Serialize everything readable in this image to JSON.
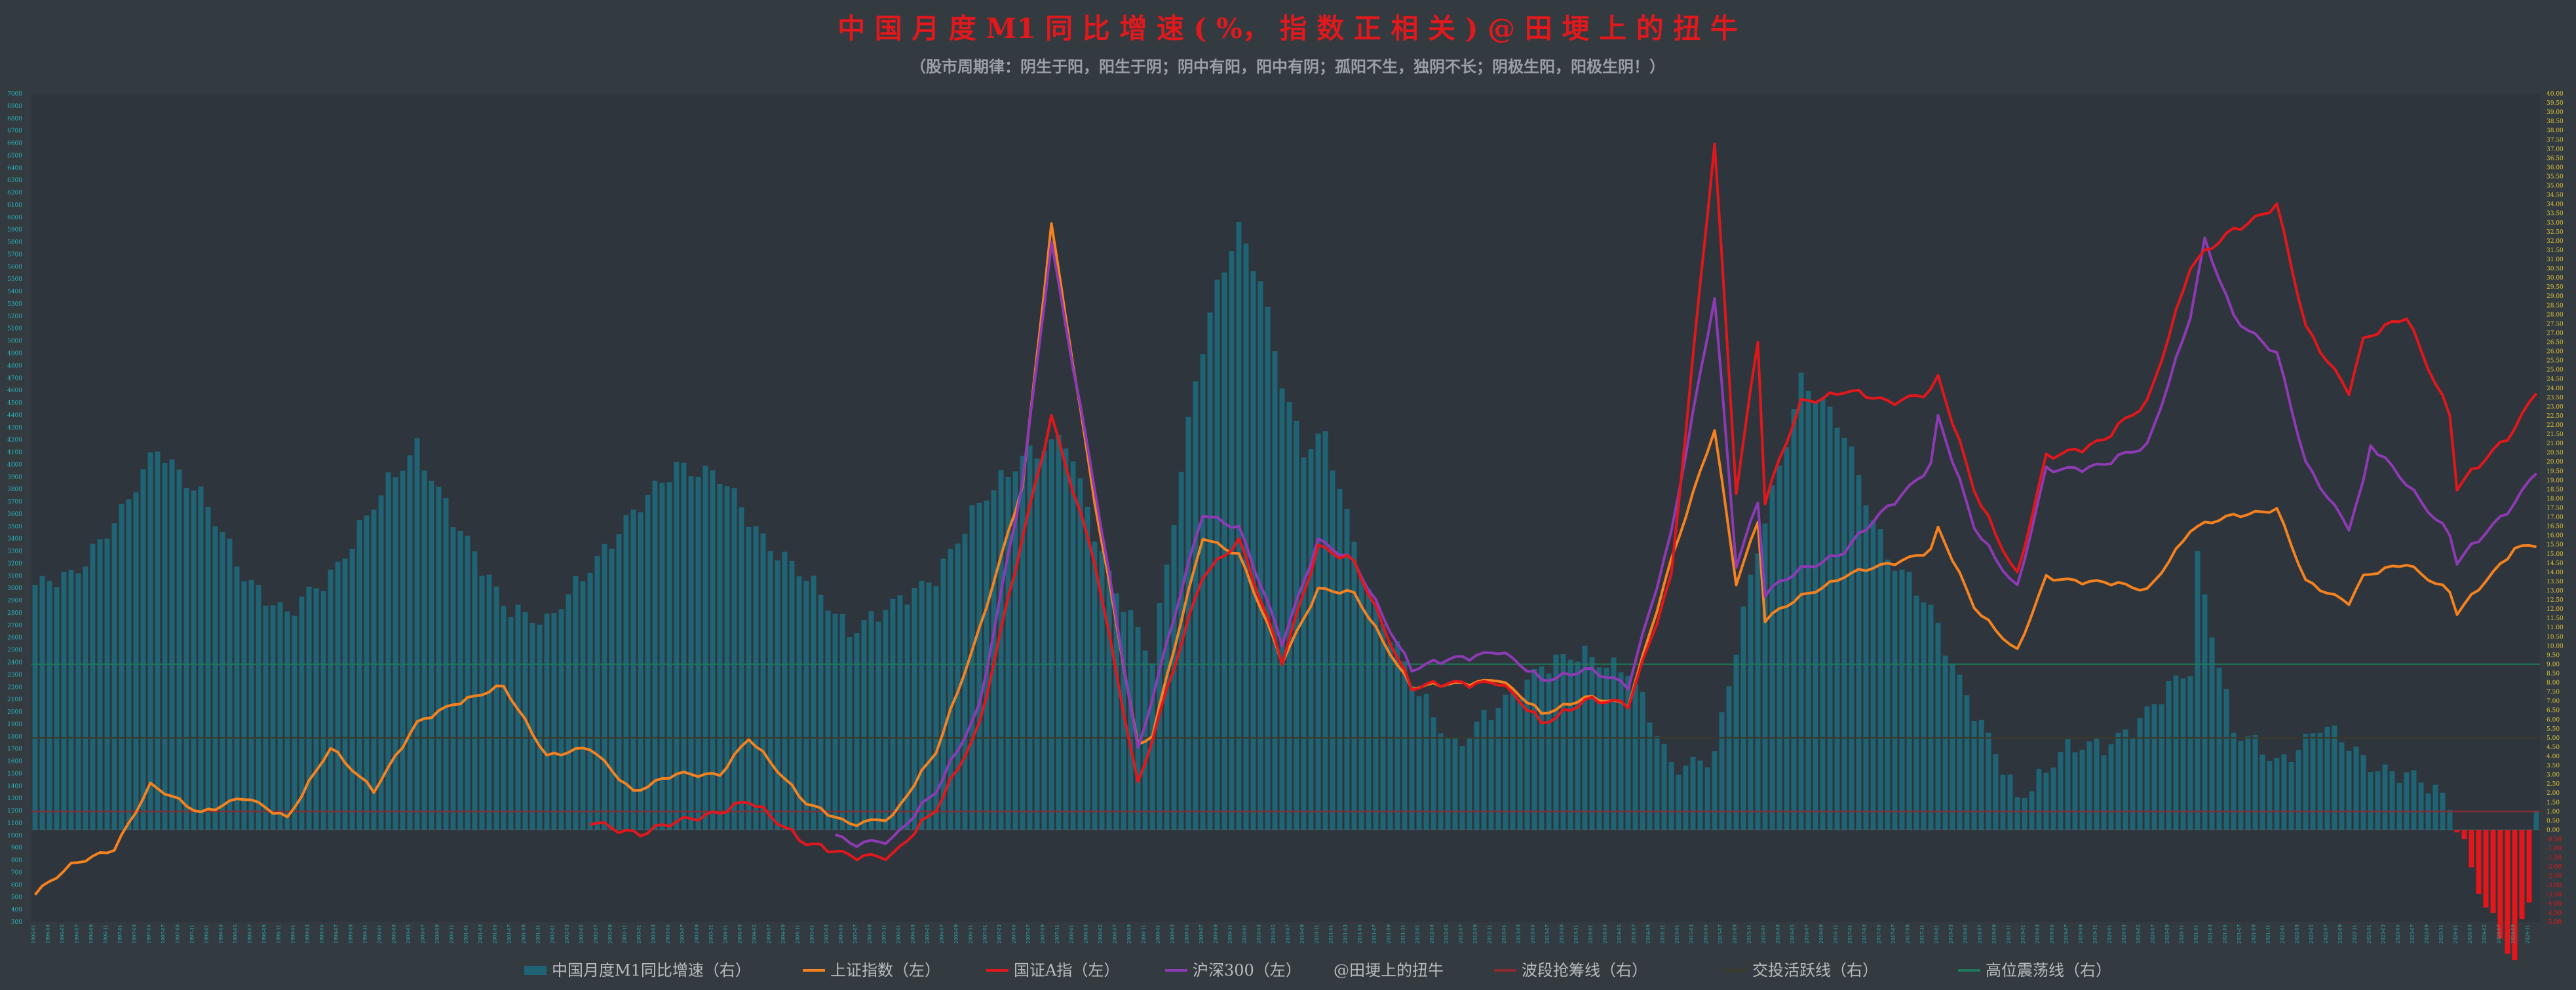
{
  "chart_data": {
    "type": "bar",
    "title": "中 国 月 度 M1 同 比 增 速 ( %， 指 数 正 相 关 ) @ 田 埂 上 的 扭 牛",
    "subtitle": "（股市周期律：阴生于阳，阳生于阴；阴中有阳，阳中有阴；孤阳不生，独阴不长；阴极生阳，阳极生阴！）",
    "colors": {
      "background": "#333a40",
      "title": "#e0191d",
      "subtitle": "#9aa0a6",
      "m1_bar": "#1f6475",
      "sh_index": "#f5821f",
      "a_index": "#e3171b",
      "hs300": "#8e3ab5",
      "negative_m1": "#e3171b",
      "left_axis_text": "#2cb5b5",
      "right_axis_text": "#d8c23a",
      "right_axis_negative_text": "#e3171b",
      "wave_line": "#8a2b31",
      "active_line": "#3a3a2a",
      "high_line": "#1c7a5a"
    },
    "x_axis": {
      "start": "1996-01",
      "end": "2024-12",
      "tick_labels_shown": "monthly dates 1996-01 to 2024-12, rotated (illegible at this resolution)"
    },
    "left_axis": {
      "label": "",
      "min": 300,
      "max": 7000,
      "tick_step": 100
    },
    "right_axis": {
      "label": "",
      "min": -5.0,
      "max": 40.0,
      "tick_step": 0.5
    },
    "reference_lines": [
      {
        "name": "波段抢筹线（右）",
        "value": 1.0,
        "axis": "right",
        "color_key": "wave_line"
      },
      {
        "name": "交投活跃线（右）",
        "value": 5.0,
        "axis": "right",
        "color_key": "active_line"
      },
      {
        "name": "高位震荡线（右）",
        "value": 9.0,
        "axis": "right",
        "color_key": "high_line"
      }
    ],
    "series_keypoints": {
      "m1_yoy_right": [
        [
          "1996-01",
          13.0
        ],
        [
          "1996-06",
          14.0
        ],
        [
          "1997-01",
          17.0
        ],
        [
          "1997-06",
          21.0
        ],
        [
          "1997-12",
          18.0
        ],
        [
          "1998-06",
          14.0
        ],
        [
          "1998-12",
          11.5
        ],
        [
          "1999-06",
          14.0
        ],
        [
          "1999-12",
          17.5
        ],
        [
          "2000-06",
          21.0
        ],
        [
          "2000-12",
          16.0
        ],
        [
          "2001-06",
          12.5
        ],
        [
          "2001-12",
          11.0
        ],
        [
          "2002-06",
          14.5
        ],
        [
          "2002-12",
          17.0
        ],
        [
          "2003-06",
          20.0
        ],
        [
          "2003-12",
          19.0
        ],
        [
          "2004-06",
          16.0
        ],
        [
          "2004-12",
          13.5
        ],
        [
          "2005-06",
          11.0
        ],
        [
          "2005-12",
          12.0
        ],
        [
          "2006-06",
          14.0
        ],
        [
          "2006-12",
          17.5
        ],
        [
          "2007-06",
          20.5
        ],
        [
          "2007-12",
          21.0
        ],
        [
          "2008-06",
          14.0
        ],
        [
          "2008-12",
          9.0
        ],
        [
          "2009-03",
          17.0
        ],
        [
          "2009-06",
          24.8
        ],
        [
          "2009-09",
          29.5
        ],
        [
          "2009-12",
          32.4
        ],
        [
          "2010-03",
          29.9
        ],
        [
          "2010-06",
          24.6
        ],
        [
          "2010-09",
          20.5
        ],
        [
          "2010-12",
          21.2
        ],
        [
          "2011-06",
          13.1
        ],
        [
          "2011-12",
          7.9
        ],
        [
          "2012-06",
          4.7
        ],
        [
          "2012-12",
          6.5
        ],
        [
          "2013-06",
          9.1
        ],
        [
          "2013-12",
          9.3
        ],
        [
          "2014-06",
          8.9
        ],
        [
          "2014-12",
          3.2
        ],
        [
          "2015-06",
          4.3
        ],
        [
          "2015-12",
          15.2
        ],
        [
          "2016-06",
          24.6
        ],
        [
          "2016-12",
          21.4
        ],
        [
          "2017-06",
          15.0
        ],
        [
          "2017-12",
          11.8
        ],
        [
          "2018-06",
          6.6
        ],
        [
          "2018-12",
          1.5
        ],
        [
          "2019-06",
          4.4
        ],
        [
          "2019-12",
          4.4
        ],
        [
          "2020-06",
          6.5
        ],
        [
          "2020-12",
          8.6
        ],
        [
          "2021-01",
          14.7
        ],
        [
          "2021-06",
          5.5
        ],
        [
          "2021-12",
          3.5
        ],
        [
          "2022-06",
          5.8
        ],
        [
          "2022-12",
          3.7
        ],
        [
          "2023-06",
          3.1
        ],
        [
          "2023-12",
          1.3
        ],
        [
          "2024-06",
          -5.0
        ],
        [
          "2024-09",
          -7.4
        ],
        [
          "2024-11",
          -3.7
        ],
        [
          "2024-12",
          1.2
        ]
      ],
      "sh_index_left": [
        [
          "1996-01",
          540
        ],
        [
          "1996-06",
          750
        ],
        [
          "1996-12",
          900
        ],
        [
          "1997-05",
          1400
        ],
        [
          "1997-12",
          1190
        ],
        [
          "1998-06",
          1300
        ],
        [
          "1998-12",
          1150
        ],
        [
          "1999-06",
          1700
        ],
        [
          "1999-12",
          1370
        ],
        [
          "2000-06",
          1900
        ],
        [
          "2000-11",
          2070
        ],
        [
          "2001-06",
          2200
        ],
        [
          "2001-12",
          1650
        ],
        [
          "2002-06",
          1700
        ],
        [
          "2002-12",
          1360
        ],
        [
          "2003-06",
          1490
        ],
        [
          "2003-12",
          1500
        ],
        [
          "2004-04",
          1780
        ],
        [
          "2004-12",
          1270
        ],
        [
          "2005-06",
          1080
        ],
        [
          "2005-12",
          1160
        ],
        [
          "2006-06",
          1670
        ],
        [
          "2006-12",
          2670
        ],
        [
          "2007-06",
          3820
        ],
        [
          "2007-10",
          5950
        ],
        [
          "2008-04",
          3690
        ],
        [
          "2008-10",
          1730
        ],
        [
          "2008-12",
          1820
        ],
        [
          "2009-07",
          3410
        ],
        [
          "2009-12",
          3280
        ],
        [
          "2010-06",
          2400
        ],
        [
          "2010-11",
          3000
        ],
        [
          "2011-04",
          2950
        ],
        [
          "2011-12",
          2200
        ],
        [
          "2012-06",
          2220
        ],
        [
          "2012-12",
          2270
        ],
        [
          "2013-06",
          1980
        ],
        [
          "2013-12",
          2120
        ],
        [
          "2014-06",
          2050
        ],
        [
          "2014-12",
          3230
        ],
        [
          "2015-06",
          4280
        ],
        [
          "2015-09",
          3050
        ],
        [
          "2015-12",
          3540
        ],
        [
          "2016-01",
          2740
        ],
        [
          "2016-06",
          2930
        ],
        [
          "2016-12",
          3100
        ],
        [
          "2017-06",
          3190
        ],
        [
          "2017-12",
          3310
        ],
        [
          "2018-01",
          3480
        ],
        [
          "2018-06",
          2850
        ],
        [
          "2018-12",
          2490
        ],
        [
          "2019-04",
          3080
        ],
        [
          "2019-12",
          3050
        ],
        [
          "2020-06",
          2980
        ],
        [
          "2020-12",
          3470
        ],
        [
          "2021-06",
          3590
        ],
        [
          "2021-12",
          3640
        ],
        [
          "2022-04",
          3050
        ],
        [
          "2022-10",
          2890
        ],
        [
          "2022-12",
          3090
        ],
        [
          "2023-06",
          3200
        ],
        [
          "2023-12",
          2970
        ],
        [
          "2024-01",
          2790
        ],
        [
          "2024-09",
          3330
        ],
        [
          "2024-12",
          3350
        ]
      ],
      "a_index_left": [
        [
          "2002-06",
          1100
        ],
        [
          "2003-01",
          1020
        ],
        [
          "2003-06",
          1100
        ],
        [
          "2004-04",
          1270
        ],
        [
          "2004-12",
          950
        ],
        [
          "2005-06",
          820
        ],
        [
          "2005-12",
          850
        ],
        [
          "2006-06",
          1200
        ],
        [
          "2006-12",
          1900
        ],
        [
          "2007-06",
          3400
        ],
        [
          "2007-10",
          4400
        ],
        [
          "2008-04",
          3200
        ],
        [
          "2008-10",
          1420
        ],
        [
          "2009-07",
          3100
        ],
        [
          "2009-12",
          3400
        ],
        [
          "2010-06",
          2400
        ],
        [
          "2010-11",
          3350
        ],
        [
          "2011-04",
          3200
        ],
        [
          "2011-12",
          2200
        ],
        [
          "2012-12",
          2250
        ],
        [
          "2013-06",
          1900
        ],
        [
          "2013-12",
          2100
        ],
        [
          "2014-06",
          2050
        ],
        [
          "2014-12",
          3100
        ],
        [
          "2015-06",
          6600
        ],
        [
          "2015-09",
          3800
        ],
        [
          "2015-12",
          5000
        ],
        [
          "2016-01",
          3700
        ],
        [
          "2016-06",
          4500
        ],
        [
          "2016-12",
          4600
        ],
        [
          "2017-06",
          4500
        ],
        [
          "2017-12",
          4600
        ],
        [
          "2018-01",
          4700
        ],
        [
          "2018-06",
          3800
        ],
        [
          "2018-12",
          3100
        ],
        [
          "2019-04",
          4050
        ],
        [
          "2019-12",
          4200
        ],
        [
          "2020-06",
          4500
        ],
        [
          "2020-12",
          5600
        ],
        [
          "2021-06",
          5900
        ],
        [
          "2021-12",
          6100
        ],
        [
          "2022-04",
          5100
        ],
        [
          "2022-10",
          4600
        ],
        [
          "2022-12",
          5000
        ],
        [
          "2023-06",
          5200
        ],
        [
          "2023-12",
          4400
        ],
        [
          "2024-01",
          3800
        ],
        [
          "2024-09",
          4300
        ],
        [
          "2024-12",
          4600
        ]
      ],
      "hs300_left": [
        [
          "2005-04",
          1000
        ],
        [
          "2005-06",
          920
        ],
        [
          "2005-12",
          980
        ],
        [
          "2006-06",
          1350
        ],
        [
          "2006-12",
          2050
        ],
        [
          "2007-06",
          3850
        ],
        [
          "2007-10",
          5800
        ],
        [
          "2008-04",
          3800
        ],
        [
          "2008-10",
          1700
        ],
        [
          "2009-07",
          3600
        ],
        [
          "2009-12",
          3500
        ],
        [
          "2010-06",
          2550
        ],
        [
          "2010-11",
          3400
        ],
        [
          "2011-04",
          3200
        ],
        [
          "2011-12",
          2350
        ],
        [
          "2012-12",
          2500
        ],
        [
          "2013-06",
          2250
        ],
        [
          "2013-12",
          2350
        ],
        [
          "2014-06",
          2200
        ],
        [
          "2014-12",
          3450
        ],
        [
          "2015-06",
          5350
        ],
        [
          "2015-09",
          3200
        ],
        [
          "2015-12",
          3700
        ],
        [
          "2016-01",
          2950
        ],
        [
          "2016-06",
          3150
        ],
        [
          "2016-12",
          3300
        ],
        [
          "2017-06",
          3650
        ],
        [
          "2017-12",
          4000
        ],
        [
          "2018-01",
          4380
        ],
        [
          "2018-06",
          3500
        ],
        [
          "2018-12",
          3000
        ],
        [
          "2019-04",
          3950
        ],
        [
          "2019-12",
          4000
        ],
        [
          "2020-06",
          4150
        ],
        [
          "2020-12",
          5200
        ],
        [
          "2021-02",
          5800
        ],
        [
          "2021-06",
          5200
        ],
        [
          "2021-12",
          4900
        ],
        [
          "2022-04",
          4000
        ],
        [
          "2022-10",
          3500
        ],
        [
          "2022-12",
          3850
        ],
        [
          "2023-01",
          4150
        ],
        [
          "2023-06",
          3850
        ],
        [
          "2023-12",
          3430
        ],
        [
          "2024-01",
          3200
        ],
        [
          "2024-09",
          3700
        ],
        [
          "2024-12",
          3950
        ]
      ]
    },
    "legend": [
      {
        "label": "中国月度M1同比增速（右）",
        "color_key": "m1_bar",
        "kind": "bar"
      },
      {
        "label": "上证指数（左）",
        "color_key": "sh_index",
        "kind": "line"
      },
      {
        "label": "国证A指（左）",
        "color_key": "a_index",
        "kind": "line"
      },
      {
        "label": "沪深300（左）",
        "color_key": "hs300",
        "kind": "line"
      },
      {
        "label": "@田埂上的扭牛",
        "color_key": "subtitle",
        "kind": "text"
      },
      {
        "label": "波段抢筹线（右）",
        "color_key": "wave_line",
        "kind": "line"
      },
      {
        "label": "交投活跃线（右）",
        "color_key": "active_line",
        "kind": "line"
      },
      {
        "label": "高位震荡线（右）",
        "color_key": "high_line",
        "kind": "line"
      }
    ]
  }
}
